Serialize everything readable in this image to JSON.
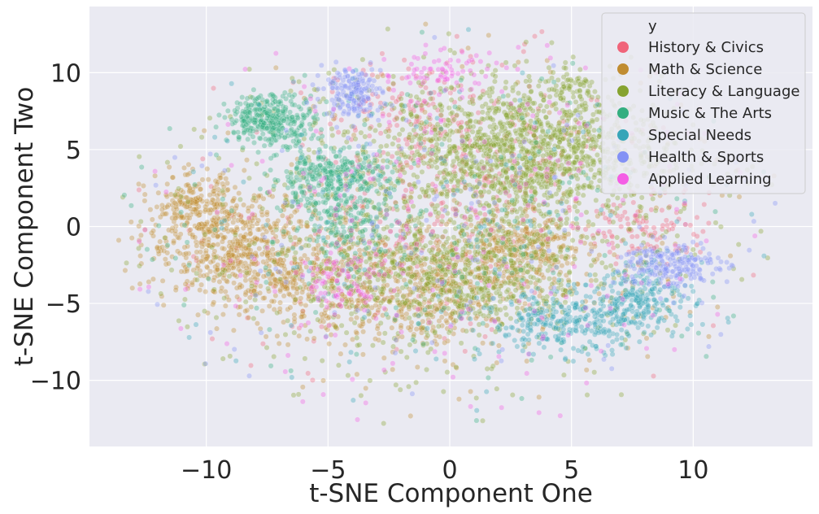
{
  "chart_data": {
    "type": "scatter",
    "title": "",
    "xlabel": "t-SNE Component One",
    "ylabel": "t-SNE Component Two",
    "xlim": [
      -14.8,
      14.9
    ],
    "ylim": [
      -14.3,
      14.3
    ],
    "xticks": [
      -10,
      -5,
      0,
      5,
      10
    ],
    "xtick_labels": [
      "−10",
      "−5",
      "0",
      "5",
      "10"
    ],
    "yticks": [
      -10,
      -5,
      0,
      5,
      10
    ],
    "ytick_labels": [
      "−10",
      "−5",
      "0",
      "5",
      "10"
    ],
    "grid": true,
    "background": "#eaeaf2",
    "grid_color": "#ffffff",
    "point_opacity": 0.35,
    "legend": {
      "title": "y",
      "placement": "top-right"
    },
    "series": [
      {
        "name": "History & Civics",
        "color": "#f0647a",
        "clusters": [
          {
            "cx": -1.5,
            "cy": 7,
            "sx": 1.8,
            "sy": 1.8,
            "n": 140
          },
          {
            "cx": 8,
            "cy": 0,
            "sx": 1.2,
            "sy": 1.2,
            "n": 90
          },
          {
            "cx": -3,
            "cy": -1.5,
            "sx": 2.5,
            "sy": 2.5,
            "n": 120
          },
          {
            "cx": 1.5,
            "cy": 4,
            "sx": 2.5,
            "sy": 2.5,
            "n": 120
          },
          {
            "cx": 0,
            "cy": 0,
            "sx": 7,
            "sy": 6,
            "n": 150
          }
        ]
      },
      {
        "name": "Math & Science",
        "color": "#c08c31",
        "clusters": [
          {
            "cx": -9,
            "cy": -1,
            "sx": 1.7,
            "sy": 1.7,
            "n": 520
          },
          {
            "cx": -10.5,
            "cy": 1.5,
            "sx": 0.8,
            "sy": 0.9,
            "n": 140
          },
          {
            "cx": 3,
            "cy": -1.5,
            "sx": 1.4,
            "sy": 1.1,
            "n": 280
          },
          {
            "cx": -1.5,
            "cy": -4,
            "sx": 2.5,
            "sy": 1.8,
            "n": 520
          },
          {
            "cx": -6.5,
            "cy": -3.5,
            "sx": 1.5,
            "sy": 1.5,
            "n": 220
          },
          {
            "cx": 0,
            "cy": 0,
            "sx": 7,
            "sy": 5.5,
            "n": 350
          }
        ]
      },
      {
        "name": "Literacy & Language",
        "color": "#86a330",
        "clusters": [
          {
            "cx": 3,
            "cy": 5,
            "sx": 2.8,
            "sy": 2.2,
            "n": 1300
          },
          {
            "cx": 0,
            "cy": -3,
            "sx": 2.8,
            "sy": 2.0,
            "n": 650
          },
          {
            "cx": 5,
            "cy": 9,
            "sx": 0.6,
            "sy": 0.5,
            "n": 40
          },
          {
            "cx": 0,
            "cy": 0,
            "sx": 7,
            "sy": 6,
            "n": 700
          }
        ]
      },
      {
        "name": "Music & The Arts",
        "color": "#33ae80",
        "clusters": [
          {
            "cx": -7.3,
            "cy": 7,
            "sx": 0.9,
            "sy": 0.8,
            "n": 340
          },
          {
            "cx": -5,
            "cy": 3.2,
            "sx": 1.2,
            "sy": 0.9,
            "n": 300
          },
          {
            "cx": -4.2,
            "cy": 0.3,
            "sx": 1.2,
            "sy": 1.2,
            "n": 150
          },
          {
            "cx": 0,
            "cy": 0,
            "sx": 7,
            "sy": 6,
            "n": 220
          }
        ]
      },
      {
        "name": "Special Needs",
        "color": "#36a5b8",
        "clusters": [
          {
            "cx": 5,
            "cy": -6.3,
            "sx": 1.8,
            "sy": 1.0,
            "n": 320
          },
          {
            "cx": 8,
            "cy": -4.5,
            "sx": 1.0,
            "sy": 0.9,
            "n": 180
          },
          {
            "cx": 0,
            "cy": 0,
            "sx": 7,
            "sy": 6,
            "n": 150
          }
        ]
      },
      {
        "name": "Health & Sports",
        "color": "#8391f5",
        "clusters": [
          {
            "cx": -4,
            "cy": 8.8,
            "sx": 0.6,
            "sy": 0.8,
            "n": 170
          },
          {
            "cx": 9,
            "cy": -2.5,
            "sx": 1.0,
            "sy": 0.8,
            "n": 200
          },
          {
            "cx": 0,
            "cy": 0,
            "sx": 7,
            "sy": 6,
            "n": 180
          }
        ]
      },
      {
        "name": "Applied Learning",
        "color": "#f45ee5",
        "clusters": [
          {
            "cx": -0.5,
            "cy": 10,
            "sx": 1.2,
            "sy": 0.7,
            "n": 70
          },
          {
            "cx": -4.5,
            "cy": -3.5,
            "sx": 1.0,
            "sy": 1.0,
            "n": 80
          },
          {
            "cx": 0,
            "cy": 0,
            "sx": 7,
            "sy": 6,
            "n": 280
          }
        ]
      }
    ]
  }
}
